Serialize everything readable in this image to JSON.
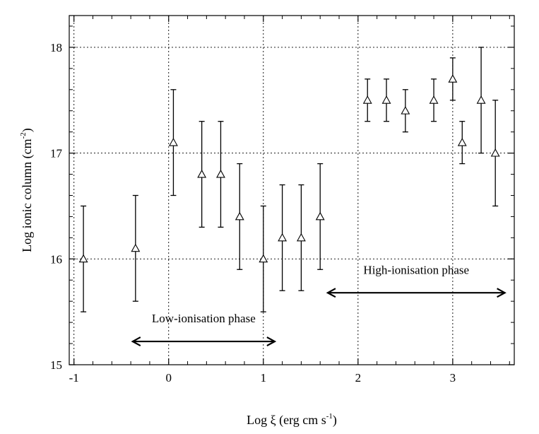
{
  "chart_data": {
    "type": "scatter",
    "title": "",
    "xlabel": "Log ξ (erg cm s",
    "xlabel_sup": "-1",
    "xlabel_close": ")",
    "ylabel": "Log ionic column (cm",
    "ylabel_sup": "-2",
    "ylabel_close": ")",
    "xlim": [
      -1.05,
      3.65
    ],
    "ylim": [
      15,
      18.3
    ],
    "x_ticks": [
      {
        "value": -1,
        "label": "-1"
      },
      {
        "value": 0,
        "label": "0"
      },
      {
        "value": 1,
        "label": "1"
      },
      {
        "value": 2,
        "label": "2"
      },
      {
        "value": 3,
        "label": "3"
      }
    ],
    "y_ticks": [
      {
        "value": 15,
        "label": "15"
      },
      {
        "value": 16,
        "label": "16"
      },
      {
        "value": 17,
        "label": "17"
      },
      {
        "value": 18,
        "label": "18"
      }
    ],
    "grid": true,
    "marker": "open-triangle",
    "points": [
      {
        "x": -0.9,
        "y": 16.0,
        "ylo": 15.5,
        "yhi": 16.5
      },
      {
        "x": -0.35,
        "y": 16.1,
        "ylo": 15.6,
        "yhi": 16.6
      },
      {
        "x": 0.05,
        "y": 17.1,
        "ylo": 16.6,
        "yhi": 17.6
      },
      {
        "x": 0.35,
        "y": 16.8,
        "ylo": 16.3,
        "yhi": 17.3
      },
      {
        "x": 0.55,
        "y": 16.8,
        "ylo": 16.3,
        "yhi": 17.3
      },
      {
        "x": 0.75,
        "y": 16.4,
        "ylo": 15.9,
        "yhi": 16.9
      },
      {
        "x": 1.0,
        "y": 16.0,
        "ylo": 15.5,
        "yhi": 16.5
      },
      {
        "x": 1.2,
        "y": 16.2,
        "ylo": 15.7,
        "yhi": 16.7
      },
      {
        "x": 1.4,
        "y": 16.2,
        "ylo": 15.7,
        "yhi": 16.7
      },
      {
        "x": 1.6,
        "y": 16.4,
        "ylo": 15.9,
        "yhi": 16.9
      },
      {
        "x": 2.1,
        "y": 17.5,
        "ylo": 17.3,
        "yhi": 17.7
      },
      {
        "x": 2.3,
        "y": 17.5,
        "ylo": 17.3,
        "yhi": 17.7
      },
      {
        "x": 2.5,
        "y": 17.4,
        "ylo": 17.2,
        "yhi": 17.6
      },
      {
        "x": 2.8,
        "y": 17.5,
        "ylo": 17.3,
        "yhi": 17.7
      },
      {
        "x": 3.0,
        "y": 17.7,
        "ylo": 17.5,
        "yhi": 17.9
      },
      {
        "x": 3.1,
        "y": 17.1,
        "ylo": 16.9,
        "yhi": 17.3
      },
      {
        "x": 3.3,
        "y": 17.5,
        "ylo": 17.0,
        "yhi": 18.0
      },
      {
        "x": 3.45,
        "y": 17.0,
        "ylo": 16.5,
        "yhi": 17.5
      }
    ],
    "annotations": [
      {
        "text": "Low-ionisation phase",
        "x_start": -0.38,
        "x_end": 1.12,
        "y": 15.22,
        "text_y": 15.4
      },
      {
        "text": "High-ionisation phase",
        "x_start": 1.68,
        "x_end": 3.55,
        "y": 15.68,
        "text_y": 15.86
      }
    ]
  }
}
